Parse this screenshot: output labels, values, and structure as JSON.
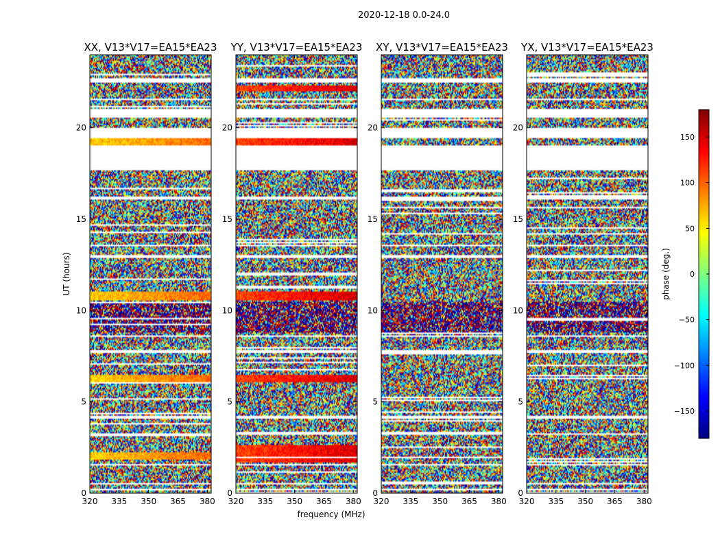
{
  "figure": {
    "suptitle": "2020-12-18 0.0-24.0",
    "xlabel": "frequency (MHz)",
    "ylabel": "UT (hours)",
    "colorbar_label": "phase (deg.)",
    "colormap": "jet"
  },
  "chart_data": {
    "type": "heatmap",
    "x_axis": {
      "label": "frequency (MHz)",
      "range": [
        320,
        382
      ],
      "ticks": [
        320,
        335,
        350,
        365,
        380
      ]
    },
    "y_axis": {
      "label": "UT (hours)",
      "range": [
        0,
        24
      ],
      "ticks": [
        0,
        5,
        10,
        15,
        20
      ]
    },
    "colorbar": {
      "label": "phase (deg.)",
      "range": [
        -180,
        180
      ],
      "ticks": [
        -150,
        -100,
        -50,
        0,
        50,
        100,
        150
      ]
    },
    "panels": [
      {
        "title": "XX, V13*V17=EA15*EA23",
        "phase_coherent_bands_ut": [
          [
            1.8,
            2.2
          ],
          [
            6.1,
            6.5
          ],
          [
            10.6,
            11.0
          ],
          [
            19.0,
            19.4
          ]
        ],
        "coherent_phase_deg": 60
      },
      {
        "title": "YY, V13*V17=EA15*EA23",
        "phase_coherent_bands_ut": [
          [
            1.7,
            2.6
          ],
          [
            6.1,
            6.5
          ],
          [
            10.6,
            11.0
          ],
          [
            19.0,
            19.4
          ],
          [
            22.0,
            22.3
          ]
        ],
        "coherent_phase_deg": 110
      },
      {
        "title": "XY, V13*V17=EA15*EA23",
        "phase_coherent_bands_ut": [],
        "coherent_phase_deg": 0
      },
      {
        "title": "YX, V13*V17=EA15*EA23",
        "phase_coherent_bands_ut": [],
        "coherent_phase_deg": 0
      }
    ],
    "flagged_ut_ranges": [
      [
        0.15,
        0.25
      ],
      [
        0.5,
        0.55
      ],
      [
        1.25,
        1.3
      ],
      [
        1.5,
        1.6
      ],
      [
        3.2,
        3.25
      ],
      [
        4.05,
        4.25
      ],
      [
        7.7,
        7.85
      ],
      [
        8.55,
        8.65
      ],
      [
        12.9,
        13.0
      ],
      [
        13.5,
        13.6
      ],
      [
        16.1,
        16.2
      ],
      [
        17.7,
        19.0
      ],
      [
        19.45,
        20.0
      ],
      [
        20.55,
        21.0
      ],
      [
        21.5,
        21.6
      ],
      [
        22.5,
        22.7
      ]
    ],
    "dense_data_ut_ranges": [
      [
        8.8,
        10.5
      ]
    ]
  }
}
